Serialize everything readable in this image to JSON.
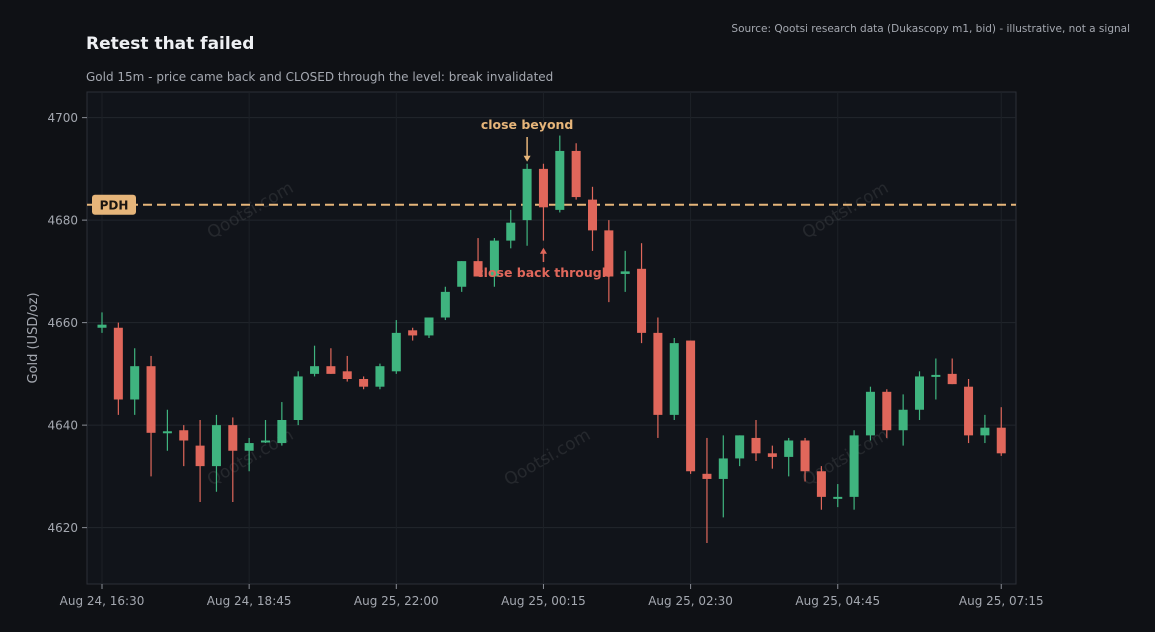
{
  "header": {
    "title": "Retest that failed",
    "subtitle": "Gold 15m - price came back and CLOSED through the level: break invalidated",
    "source": "Source: Qootsi research data (Dukascopy m1, bid) - illustrative, not a signal"
  },
  "watermark": "Qootsi.com",
  "colors": {
    "background": "#0f1115",
    "up": "#3fb47f",
    "down": "#e0675b",
    "level": "#e6b57a",
    "beyond_annotation": "#e6b57a",
    "through_annotation": "#e0675b"
  },
  "chart_data": {
    "type": "candlestick",
    "ylabel": "Gold (USD/oz)",
    "xlabel": "",
    "ylim": [
      4609,
      4705
    ],
    "yticks": [
      4620,
      4640,
      4660,
      4680,
      4700
    ],
    "xticks": [
      "Aug 24, 16:30",
      "Aug 24, 18:45",
      "Aug 25, 22:00",
      "Aug 25, 00:15",
      "Aug 25, 02:30",
      "Aug 25, 04:45",
      "Aug 25, 07:15"
    ],
    "grid": true,
    "level": {
      "label": "PDH",
      "value": 4683
    },
    "annotations": [
      {
        "text": "close beyond",
        "candle_index": 26,
        "value": 4691,
        "position": "above"
      },
      {
        "text": "close back through",
        "candle_index": 27,
        "value": 4675,
        "position": "below"
      }
    ],
    "candles": [
      {
        "o": 4659.0,
        "h": 4662.0,
        "l": 4658.0,
        "c": 4659.6
      },
      {
        "o": 4659.0,
        "h": 4660.0,
        "l": 4642.0,
        "c": 4645.0
      },
      {
        "o": 4645.0,
        "h": 4655.0,
        "l": 4642.0,
        "c": 4651.5
      },
      {
        "o": 4651.5,
        "h": 4653.5,
        "l": 4630.0,
        "c": 4638.5
      },
      {
        "o": 4638.5,
        "h": 4643.0,
        "l": 4635.0,
        "c": 4638.8
      },
      {
        "o": 4639.0,
        "h": 4640.0,
        "l": 4632.0,
        "c": 4637.0
      },
      {
        "o": 4636.0,
        "h": 4641.0,
        "l": 4625.0,
        "c": 4632.0
      },
      {
        "o": 4632.0,
        "h": 4642.0,
        "l": 4627.0,
        "c": 4640.0
      },
      {
        "o": 4640.0,
        "h": 4641.5,
        "l": 4625.0,
        "c": 4635.0
      },
      {
        "o": 4635.0,
        "h": 4637.5,
        "l": 4631.0,
        "c": 4636.5
      },
      {
        "o": 4637.0,
        "h": 4641.0,
        "l": 4636.5,
        "c": 4637.0
      },
      {
        "o": 4636.5,
        "h": 4644.5,
        "l": 4636.0,
        "c": 4641.0
      },
      {
        "o": 4641.0,
        "h": 4650.5,
        "l": 4640.0,
        "c": 4649.5
      },
      {
        "o": 4650.0,
        "h": 4655.5,
        "l": 4649.5,
        "c": 4651.5
      },
      {
        "o": 4651.5,
        "h": 4655.0,
        "l": 4650.0,
        "c": 4650.0
      },
      {
        "o": 4650.5,
        "h": 4653.5,
        "l": 4648.5,
        "c": 4649.0
      },
      {
        "o": 4649.0,
        "h": 4649.5,
        "l": 4647.0,
        "c": 4647.5
      },
      {
        "o": 4647.5,
        "h": 4652.0,
        "l": 4647.0,
        "c": 4651.5
      },
      {
        "o": 4650.5,
        "h": 4660.5,
        "l": 4650.0,
        "c": 4658.0
      },
      {
        "o": 4658.5,
        "h": 4659.0,
        "l": 4656.5,
        "c": 4657.5
      },
      {
        "o": 4657.5,
        "h": 4661.0,
        "l": 4657.0,
        "c": 4661.0
      },
      {
        "o": 4661.0,
        "h": 4667.0,
        "l": 4660.5,
        "c": 4666.0
      },
      {
        "o": 4667.0,
        "h": 4672.0,
        "l": 4666.0,
        "c": 4672.0
      },
      {
        "o": 4672.0,
        "h": 4676.5,
        "l": 4669.0,
        "c": 4669.0
      },
      {
        "o": 4669.0,
        "h": 4676.5,
        "l": 4667.0,
        "c": 4676.0
      },
      {
        "o": 4676.0,
        "h": 4682.0,
        "l": 4674.5,
        "c": 4679.5
      },
      {
        "o": 4680.0,
        "h": 4691.0,
        "l": 4675.0,
        "c": 4690.0
      },
      {
        "o": 4690.0,
        "h": 4691.0,
        "l": 4676.0,
        "c": 4682.5
      },
      {
        "o": 4682.0,
        "h": 4696.5,
        "l": 4681.5,
        "c": 4693.5
      },
      {
        "o": 4693.5,
        "h": 4695.0,
        "l": 4684.0,
        "c": 4684.5
      },
      {
        "o": 4684.0,
        "h": 4686.5,
        "l": 4674.0,
        "c": 4678.0
      },
      {
        "o": 4678.0,
        "h": 4680.0,
        "l": 4664.0,
        "c": 4669.0
      },
      {
        "o": 4669.5,
        "h": 4674.0,
        "l": 4666.0,
        "c": 4670.0
      },
      {
        "o": 4670.5,
        "h": 4675.5,
        "l": 4656.0,
        "c": 4658.0
      },
      {
        "o": 4658.0,
        "h": 4661.0,
        "l": 4637.5,
        "c": 4642.0
      },
      {
        "o": 4642.0,
        "h": 4657.0,
        "l": 4641.0,
        "c": 4656.0
      },
      {
        "o": 4656.5,
        "h": 4656.5,
        "l": 4630.5,
        "c": 4631.0
      },
      {
        "o": 4630.5,
        "h": 4637.5,
        "l": 4617.0,
        "c": 4629.5
      },
      {
        "o": 4629.5,
        "h": 4638.0,
        "l": 4622.0,
        "c": 4633.5
      },
      {
        "o": 4633.5,
        "h": 4638.0,
        "l": 4632.0,
        "c": 4638.0
      },
      {
        "o": 4637.5,
        "h": 4641.0,
        "l": 4633.0,
        "c": 4634.5
      },
      {
        "o": 4634.5,
        "h": 4636.0,
        "l": 4631.5,
        "c": 4633.8
      },
      {
        "o": 4633.8,
        "h": 4637.5,
        "l": 4630.0,
        "c": 4637.0
      },
      {
        "o": 4637.0,
        "h": 4637.5,
        "l": 4629.0,
        "c": 4631.0
      },
      {
        "o": 4631.0,
        "h": 4632.0,
        "l": 4623.5,
        "c": 4626.0
      },
      {
        "o": 4626.0,
        "h": 4628.5,
        "l": 4624.0,
        "c": 4626.0
      },
      {
        "o": 4626.0,
        "h": 4639.0,
        "l": 4623.5,
        "c": 4638.0
      },
      {
        "o": 4638.0,
        "h": 4647.5,
        "l": 4637.0,
        "c": 4646.5
      },
      {
        "o": 4646.5,
        "h": 4647.0,
        "l": 4637.5,
        "c": 4639.0
      },
      {
        "o": 4639.0,
        "h": 4646.0,
        "l": 4636.0,
        "c": 4643.0
      },
      {
        "o": 4643.0,
        "h": 4650.5,
        "l": 4641.0,
        "c": 4649.5
      },
      {
        "o": 4649.5,
        "h": 4653.0,
        "l": 4645.0,
        "c": 4649.8
      },
      {
        "o": 4650.0,
        "h": 4653.0,
        "l": 4648.0,
        "c": 4648.0
      },
      {
        "o": 4647.5,
        "h": 4649.0,
        "l": 4636.5,
        "c": 4638.0
      },
      {
        "o": 4638.0,
        "h": 4642.0,
        "l": 4636.5,
        "c": 4639.5
      },
      {
        "o": 4639.5,
        "h": 4643.5,
        "l": 4634.0,
        "c": 4634.5
      }
    ]
  }
}
